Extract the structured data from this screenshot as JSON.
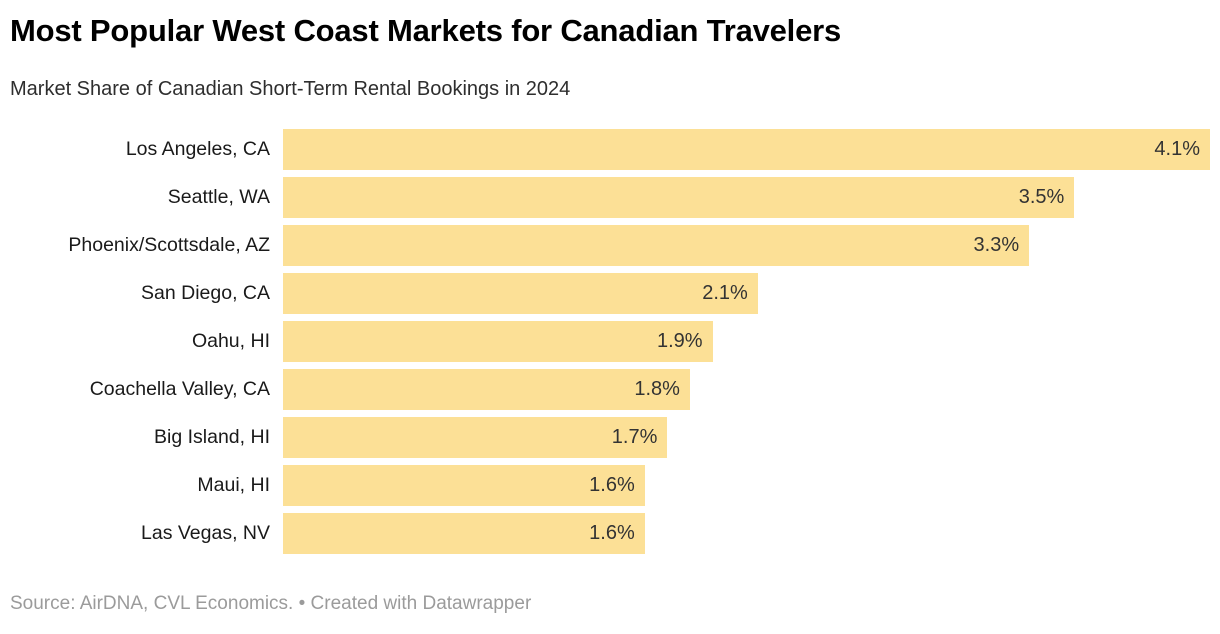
{
  "header": {
    "title": "Most Popular West Coast Markets for Canadian Travelers",
    "subtitle": "Market Share of Canadian Short-Term Rental Bookings in 2024"
  },
  "chart_data": {
    "type": "bar",
    "orientation": "horizontal",
    "title": "Most Popular West Coast Markets for Canadian Travelers",
    "subtitle": "Market Share of Canadian Short-Term Rental Bookings in 2024",
    "categories": [
      "Los Angeles, CA",
      "Seattle, WA",
      "Phoenix/Scottsdale, AZ",
      "San Diego, CA",
      "Oahu, HI",
      "Coachella Valley, CA",
      "Big Island, HI",
      "Maui, HI",
      "Las Vegas, NV"
    ],
    "values": [
      4.1,
      3.5,
      3.3,
      2.1,
      1.9,
      1.8,
      1.7,
      1.6,
      1.6
    ],
    "value_labels": [
      "4.1%",
      "3.5%",
      "3.3%",
      "2.1%",
      "1.9%",
      "1.8%",
      "1.7%",
      "1.6%",
      "1.6%"
    ],
    "value_suffix": "%",
    "xlim": [
      0,
      4.1
    ],
    "grid": false,
    "legend": false,
    "value_label_position": "inside-end",
    "bar_color": "#fce096"
  },
  "footer": {
    "text": "Source: AirDNA, CVL Economics. • Created with Datawrapper"
  },
  "colors": {
    "background": "#ffffff",
    "title": "#000000",
    "subtitle": "#2e2e2e",
    "category_label": "#1a1a1a",
    "value_label": "#333333",
    "bar": "#fce096",
    "footer": "#9b9b9b"
  }
}
